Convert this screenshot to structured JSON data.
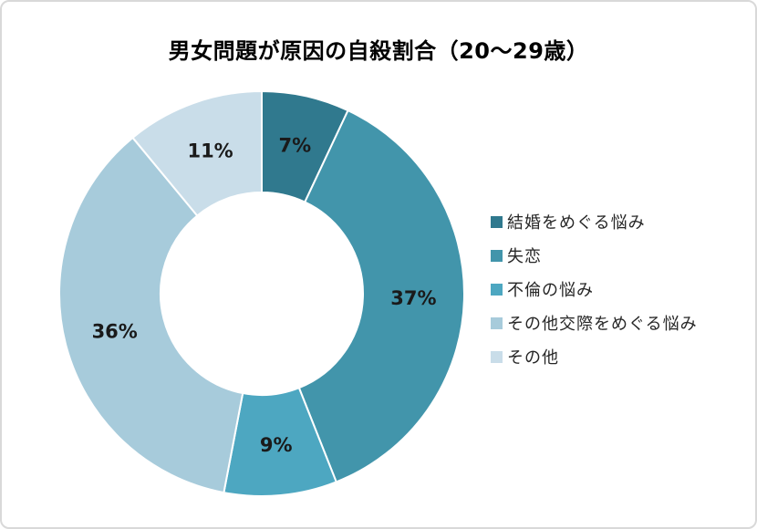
{
  "frame": {
    "background": "#ffffff",
    "border_color": "#d9d9d9"
  },
  "chart_data": {
    "type": "doughnut",
    "title": "男女問題が原因の自殺割合（20～29歳）",
    "categories": [
      "結婚をめぐる悩み",
      "失恋",
      "不倫の悩み",
      "その他交際をめぐる悩み",
      "その他"
    ],
    "values": [
      7,
      37,
      9,
      36,
      11
    ],
    "unit": "%",
    "value_labels": [
      "7%",
      "37%",
      "9%",
      "36%",
      "11%"
    ],
    "colors": [
      "#30798E",
      "#4295AB",
      "#4DA7C1",
      "#A7CBDB",
      "#C9DDE9"
    ],
    "start_angle_deg": 0,
    "direction": "clockwise",
    "hole_ratio": 0.5,
    "slice_border_color": "#ffffff",
    "label_color": "#1a1a1a",
    "legend_position": "right"
  }
}
